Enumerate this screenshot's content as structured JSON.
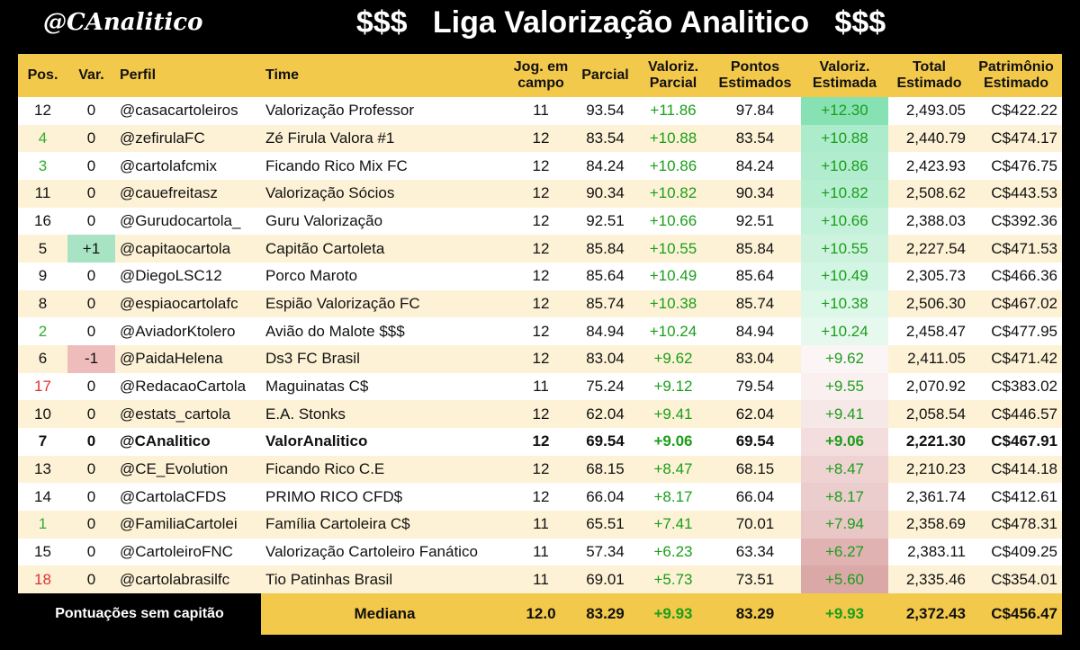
{
  "header": {
    "logo": "@CAnalitico",
    "title": "$$$   Liga Valorização Analitico   $$$"
  },
  "table": {
    "columns": [
      [
        "Pos."
      ],
      [
        "Var."
      ],
      [
        "Perfil"
      ],
      [
        "Time"
      ],
      [
        "Jog. em",
        "campo"
      ],
      [
        "Parcial"
      ],
      [
        "Valoriz.",
        "Parcial"
      ],
      [
        "Pontos",
        "Estimados"
      ],
      [
        "Valoriz.",
        "Estimada"
      ],
      [
        "Total",
        "Estimado"
      ],
      [
        "Patrimônio",
        "Estimado"
      ]
    ],
    "rows": [
      {
        "cells": [
          "12",
          "0",
          "@casacartoleiros",
          "Valorização Professor",
          "11",
          "93.54",
          "+11.86",
          "97.84",
          "+12.30",
          "2,493.05",
          "C$422.22"
        ],
        "est_bg": "#86e1b3"
      },
      {
        "cells": [
          "4",
          "0",
          "@zefirulaFC",
          "Zé Firula Valora #1",
          "12",
          "83.54",
          "+10.88",
          "83.54",
          "+10.88",
          "2,440.79",
          "C$474.17"
        ],
        "pos_color": "#2fae2f",
        "est_bg": "#acebcb"
      },
      {
        "cells": [
          "3",
          "0",
          "@cartolafcmix",
          "Ficando Rico Mix FC",
          "12",
          "84.24",
          "+10.86",
          "84.24",
          "+10.86",
          "2,423.93",
          "C$476.75"
        ],
        "pos_color": "#2fae2f",
        "est_bg": "#b0eccd"
      },
      {
        "cells": [
          "11",
          "0",
          "@cauefreitasz",
          "Valorização Sócios",
          "12",
          "90.34",
          "+10.82",
          "90.34",
          "+10.82",
          "2,508.62",
          "C$443.53"
        ],
        "est_bg": "#b6eed1"
      },
      {
        "cells": [
          "16",
          "0",
          "@Gurudocartola_",
          "Guru Valorização",
          "12",
          "92.51",
          "+10.66",
          "92.51",
          "+10.66",
          "2,388.03",
          "C$392.36"
        ],
        "est_bg": "#c4f1d9"
      },
      {
        "cells": [
          "5",
          "+1",
          "@capitaocartola",
          "Capitão Cartoleta",
          "12",
          "85.84",
          "+10.55",
          "85.84",
          "+10.55",
          "2,227.54",
          "C$471.53"
        ],
        "var_bg": "#a8e3c4",
        "est_bg": "#cdf3df"
      },
      {
        "cells": [
          "9",
          "0",
          "@DiegoLSC12",
          "Porco Maroto",
          "12",
          "85.64",
          "+10.49",
          "85.64",
          "+10.49",
          "2,305.73",
          "C$466.36"
        ],
        "est_bg": "#d3f5e3"
      },
      {
        "cells": [
          "8",
          "0",
          "@espiaocartolafc",
          "Espião Valorização FC",
          "12",
          "85.74",
          "+10.38",
          "85.74",
          "+10.38",
          "2,506.30",
          "C$467.02"
        ],
        "est_bg": "#ddf7e9"
      },
      {
        "cells": [
          "2",
          "0",
          "@AviadorKtolero",
          "Avião do Malote $$$",
          "12",
          "84.94",
          "+10.24",
          "84.94",
          "+10.24",
          "2,458.47",
          "C$477.95"
        ],
        "pos_color": "#2fae2f",
        "est_bg": "#e7f9ef"
      },
      {
        "cells": [
          "6",
          "-1",
          "@PaidaHelena",
          "Ds3 FC Brasil",
          "12",
          "83.04",
          "+9.62",
          "83.04",
          "+9.62",
          "2,411.05",
          "C$471.42"
        ],
        "var_bg": "#efbcbc",
        "est_bg": "#fcf5f5"
      },
      {
        "cells": [
          "17",
          "0",
          "@RedacaoCartola",
          "Maguinatas C$",
          "11",
          "75.24",
          "+9.12",
          "79.54",
          "+9.55",
          "2,070.92",
          "C$383.02"
        ],
        "pos_color": "#e03030",
        "est_bg": "#faf0f0"
      },
      {
        "cells": [
          "10",
          "0",
          "@estats_cartola",
          "E.A. Stonks",
          "12",
          "62.04",
          "+9.41",
          "62.04",
          "+9.41",
          "2,058.54",
          "C$446.57"
        ],
        "est_bg": "#f7e8e8"
      },
      {
        "cells": [
          "7",
          "0",
          "@CAnalitico",
          "ValorAnalitico",
          "12",
          "69.54",
          "+9.06",
          "69.54",
          "+9.06",
          "2,221.30",
          "C$467.91"
        ],
        "bold": true,
        "est_bg": "#f3dddd"
      },
      {
        "cells": [
          "13",
          "0",
          "@CE_Evolution",
          "Ficando Rico C.E",
          "12",
          "68.15",
          "+8.47",
          "68.15",
          "+8.47",
          "2,210.23",
          "C$414.18"
        ],
        "est_bg": "#efd3d3"
      },
      {
        "cells": [
          "14",
          "0",
          "@CartolaCFDS",
          "PRIMO RICO CFD$",
          "12",
          "66.04",
          "+8.17",
          "66.04",
          "+8.17",
          "2,361.74",
          "C$412.61"
        ],
        "est_bg": "#eccdcd"
      },
      {
        "cells": [
          "1",
          "0",
          "@FamiliaCartolei",
          "Família Cartoleira C$",
          "11",
          "65.51",
          "+7.41",
          "70.01",
          "+7.94",
          "2,358.69",
          "C$478.31"
        ],
        "pos_color": "#2fae2f",
        "est_bg": "#e9c7c7"
      },
      {
        "cells": [
          "15",
          "0",
          "@CartoleiroFNC",
          "Valorização Cartoleiro Fanático",
          "11",
          "57.34",
          "+6.23",
          "63.34",
          "+6.27",
          "2,383.11",
          "C$409.25"
        ],
        "est_bg": "#e0b2b2"
      },
      {
        "cells": [
          "18",
          "0",
          "@cartolabrasilfc",
          "Tio Patinhas Brasil",
          "11",
          "69.01",
          "+5.73",
          "73.51",
          "+5.60",
          "2,335.46",
          "C$354.01"
        ],
        "pos_color": "#e03030",
        "est_bg": "#dba8a8"
      }
    ],
    "footer": {
      "note": "Pontuações sem capitão",
      "label": "Mediana",
      "cells": [
        "12.0",
        "83.29",
        "+9.93",
        "83.29",
        "+9.93",
        "2,372.43",
        "C$456.47"
      ]
    }
  }
}
